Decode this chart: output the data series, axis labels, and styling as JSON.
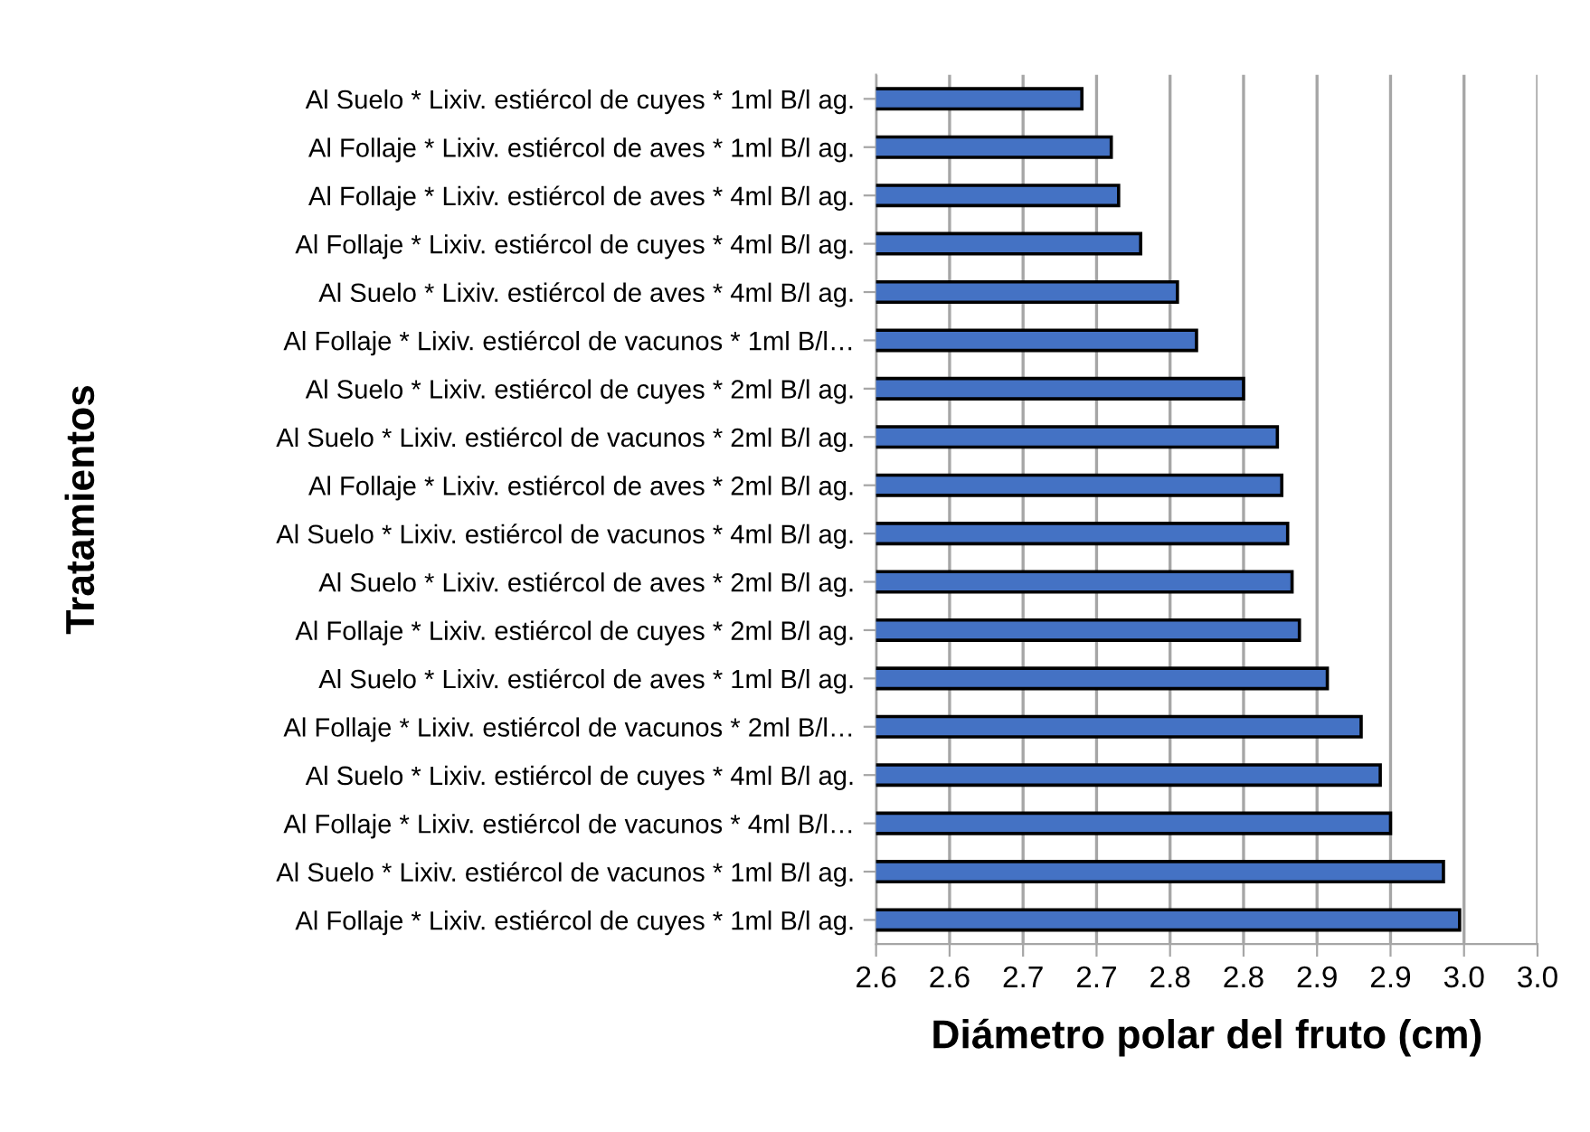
{
  "chart_data": {
    "type": "bar",
    "orientation": "horizontal",
    "xlabel": "Diámetro polar del fruto (cm)",
    "ylabel": "Tratamientos",
    "categories": [
      "Al Suelo * Lixiv. estiércol de cuyes * 1ml B/l ag.",
      "Al Follaje * Lixiv. estiércol de aves * 1ml B/l ag.",
      "Al Follaje * Lixiv. estiércol de aves * 4ml B/l ag.",
      "Al Follaje * Lixiv. estiércol de cuyes * 4ml B/l ag.",
      "Al Suelo * Lixiv. estiércol de aves * 4ml B/l ag.",
      "Al Follaje * Lixiv. estiércol de vacunos * 1ml B/l…",
      "Al Suelo * Lixiv. estiércol de cuyes * 2ml B/l ag.",
      "Al Suelo * Lixiv. estiércol de vacunos * 2ml B/l ag.",
      "Al Follaje * Lixiv. estiércol de aves * 2ml B/l ag.",
      "Al Suelo * Lixiv. estiércol de vacunos * 4ml B/l ag.",
      "Al Suelo * Lixiv. estiércol de aves * 2ml B/l ag.",
      "Al Follaje * Lixiv. estiércol de cuyes * 2ml B/l ag.",
      "Al Suelo * Lixiv. estiércol de aves * 1ml B/l ag.",
      "Al Follaje * Lixiv. estiércol de vacunos * 2ml B/l…",
      "Al Suelo * Lixiv. estiércol de cuyes * 4ml B/l ag.",
      "Al Follaje * Lixiv. estiércol de vacunos * 4ml B/l…",
      "Al Suelo * Lixiv. estiércol de vacunos * 1ml B/l ag.",
      "Al Follaje * Lixiv. estiércol de cuyes * 1ml B/l ag."
    ],
    "values": [
      2.69,
      2.71,
      2.715,
      2.73,
      2.755,
      2.768,
      2.8,
      2.823,
      2.826,
      2.83,
      2.833,
      2.838,
      2.857,
      2.88,
      2.893,
      2.9,
      2.936,
      2.947
    ],
    "color": "#4472c4",
    "xlim": [
      2.55,
      3.0
    ],
    "xticks": [
      {
        "value": 2.55,
        "label": "2.6"
      },
      {
        "value": 2.6,
        "label": "2.6"
      },
      {
        "value": 2.65,
        "label": "2.7"
      },
      {
        "value": 2.7,
        "label": "2.7"
      },
      {
        "value": 2.75,
        "label": "2.8"
      },
      {
        "value": 2.8,
        "label": "2.8"
      },
      {
        "value": 2.85,
        "label": "2.9"
      },
      {
        "value": 2.9,
        "label": "2.9"
      },
      {
        "value": 2.95,
        "label": "3.0"
      },
      {
        "value": 3.0,
        "label": "3.0"
      }
    ],
    "grid": "x",
    "legend": false
  }
}
